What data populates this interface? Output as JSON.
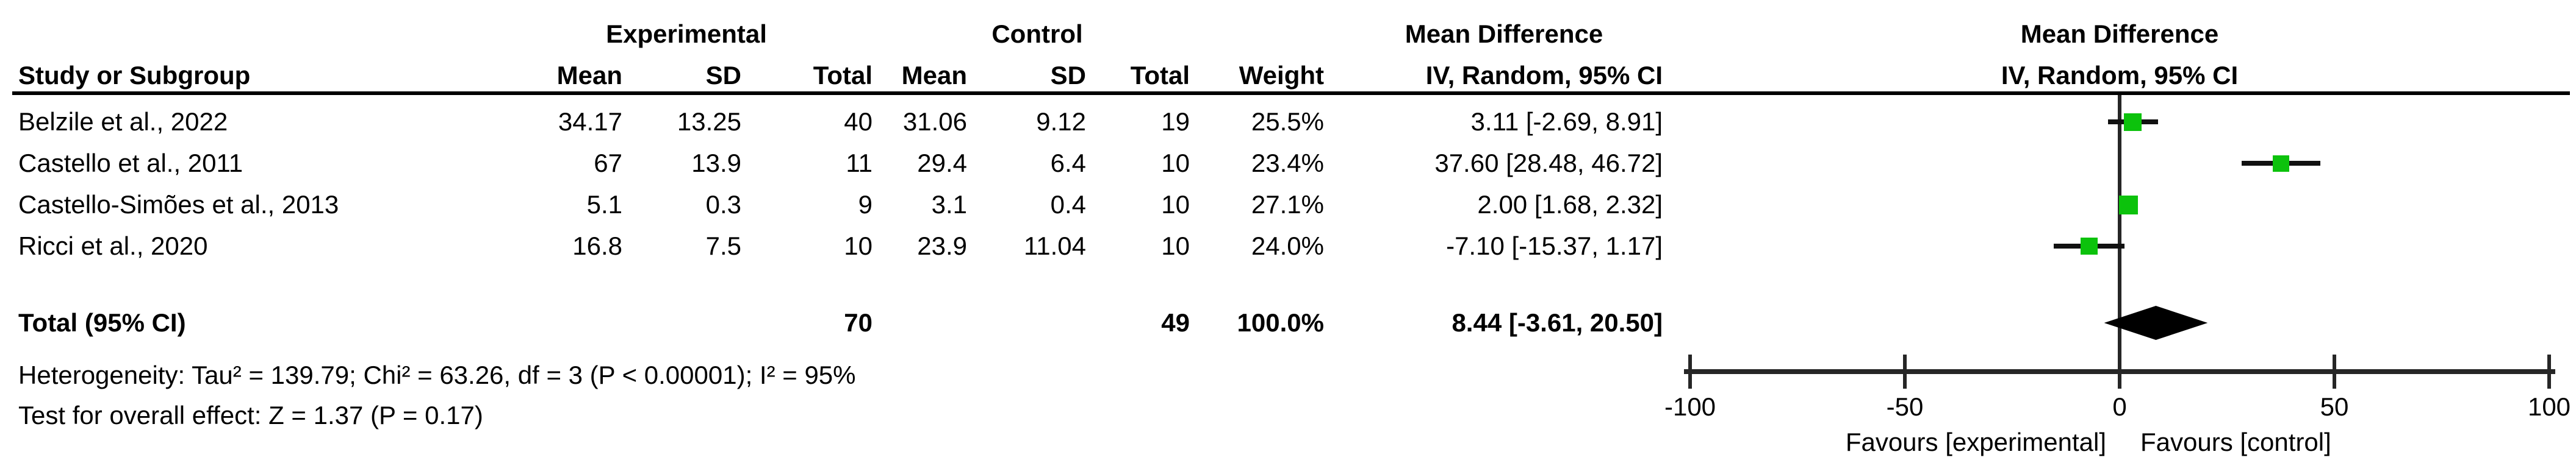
{
  "chart_data": {
    "type": "scatter",
    "subtype": "forest-plot-meta-analysis",
    "title": "Mean Difference IV, Random, 95% CI",
    "columns": {
      "study": "Study or Subgroup",
      "group_experimental": "Experimental",
      "group_control": "Control",
      "mean": "Mean",
      "sd": "SD",
      "total": "Total",
      "weight": "Weight",
      "md_title": "Mean Difference",
      "md_subtitle": "IV, Random, 95% CI"
    },
    "studies": [
      {
        "study": "Belzile et al., 2022",
        "exp_mean": "34.17",
        "exp_sd": "13.25",
        "exp_total": "40",
        "ctrl_mean": "31.06",
        "ctrl_sd": "9.12",
        "ctrl_total": "19",
        "weight": "25.5%",
        "weight_pct": 25.5,
        "md": 3.11,
        "ci_low": -2.69,
        "ci_high": 8.91,
        "ci_label": "3.11 [-2.69, 8.91]"
      },
      {
        "study": "Castello et al., 2011",
        "exp_mean": "67",
        "exp_sd": "13.9",
        "exp_total": "11",
        "ctrl_mean": "29.4",
        "ctrl_sd": "6.4",
        "ctrl_total": "10",
        "weight": "23.4%",
        "weight_pct": 23.4,
        "md": 37.6,
        "ci_low": 28.48,
        "ci_high": 46.72,
        "ci_label": "37.60 [28.48, 46.72]"
      },
      {
        "study": "Castello-Simões et al., 2013",
        "exp_mean": "5.1",
        "exp_sd": "0.3",
        "exp_total": "9",
        "ctrl_mean": "3.1",
        "ctrl_sd": "0.4",
        "ctrl_total": "10",
        "weight": "27.1%",
        "weight_pct": 27.1,
        "md": 2.0,
        "ci_low": 1.68,
        "ci_high": 2.32,
        "ci_label": "2.00 [1.68, 2.32]"
      },
      {
        "study": "Ricci et al., 2020",
        "exp_mean": "16.8",
        "exp_sd": "7.5",
        "exp_total": "10",
        "ctrl_mean": "23.9",
        "ctrl_sd": "11.04",
        "ctrl_total": "10",
        "weight": "24.0%",
        "weight_pct": 24.0,
        "md": -7.1,
        "ci_low": -15.37,
        "ci_high": 1.17,
        "ci_label": "-7.10 [-15.37, 1.17]"
      }
    ],
    "total": {
      "label": "Total (95% CI)",
      "exp_total": "70",
      "ctrl_total": "49",
      "weight": "100.0%",
      "md": 8.44,
      "ci_low": -3.61,
      "ci_high": 20.5,
      "ci_label": "8.44 [-3.61, 20.50]"
    },
    "heterogeneity": "Heterogeneity: Tau² = 139.79; Chi² = 63.26, df = 3 (P < 0.00001); I² = 95%",
    "overall_effect": "Test for overall effect: Z = 1.37 (P = 0.17)",
    "axis": {
      "min": -100,
      "max": 100,
      "ticks": [
        "-100",
        "-50",
        "0",
        "50",
        "100"
      ],
      "favours_left": "Favours [experimental]",
      "favours_right": "Favours [control]"
    },
    "colors": {
      "square": "#0cc20c",
      "diamond": "#000000",
      "line": "#262626",
      "text": "#000000"
    }
  }
}
